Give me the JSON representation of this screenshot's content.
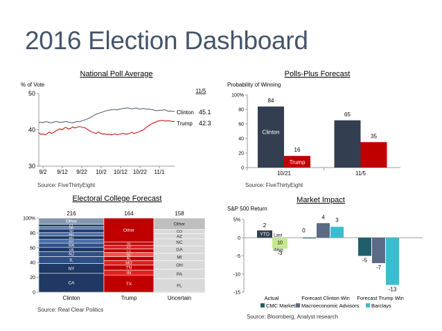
{
  "dashboard": {
    "title": "2016 Election Dashboard"
  },
  "chart_data": [
    {
      "type": "line",
      "title": "National Poll Average",
      "ylabel": "% of Vote",
      "ylim": [
        30,
        50
      ],
      "yticks": [
        "50",
        "40",
        "30"
      ],
      "xticks": [
        "9/2",
        "9/12",
        "9/22",
        "10/2",
        "10/12",
        "10/22",
        "11/1"
      ],
      "date_label": "11/5",
      "source": "Source: FiveThirtyEight",
      "series": [
        {
          "name": "Clinton",
          "latest": "45.1",
          "color": "#44546a",
          "values": [
            42.0,
            42.1,
            42.0,
            42.2,
            42.2,
            42.0,
            41.9,
            42.1,
            42.3,
            42.2,
            42.0,
            42.1,
            42.2,
            42.3,
            42.1,
            42.0,
            41.9,
            42.1,
            42.3,
            42.2,
            42.4,
            42.6,
            42.8,
            43.0,
            43.3,
            43.6,
            44.0,
            44.3,
            44.5,
            44.7,
            44.9,
            45.1,
            45.3,
            45.4,
            45.5,
            45.6,
            45.6,
            45.5,
            45.7,
            45.8,
            45.9,
            46.0,
            46.0,
            45.9,
            45.8,
            45.9,
            46.0,
            45.8,
            45.7,
            45.9,
            45.8,
            45.7,
            45.7,
            45.6,
            45.5,
            45.3,
            45.3,
            45.4,
            45.4,
            45.5,
            45.4,
            45.1,
            45.2,
            45.1,
            45.1
          ]
        },
        {
          "name": "Trump",
          "latest": "42.3",
          "color": "#c00000",
          "values": [
            39.2,
            38.7,
            38.9,
            38.6,
            39.0,
            39.4,
            39.0,
            39.3,
            39.7,
            40.0,
            40.3,
            40.0,
            40.5,
            40.6,
            40.2,
            40.4,
            40.8,
            40.5,
            40.7,
            40.9,
            40.8,
            40.6,
            40.5,
            40.1,
            39.7,
            39.4,
            39.2,
            39.0,
            39.4,
            39.1,
            38.8,
            38.9,
            38.7,
            38.8,
            38.6,
            38.7,
            38.9,
            38.6,
            38.8,
            38.9,
            39.0,
            38.8,
            38.9,
            39.1,
            39.3,
            39.0,
            39.2,
            39.4,
            39.7,
            39.9,
            40.3,
            40.8,
            41.2,
            41.6,
            41.9,
            42.1,
            42.4,
            42.5,
            42.6,
            42.5,
            42.4,
            42.5,
            42.4,
            42.3,
            42.3
          ]
        }
      ]
    },
    {
      "type": "bar",
      "title": "Polls-Plus Forecast",
      "ylabel": "Probability of Winning",
      "ylim": [
        0,
        100
      ],
      "yticks": [
        "100%",
        "80",
        "60",
        "40",
        "20",
        "0"
      ],
      "categories": [
        "10/21",
        "11/5"
      ],
      "source": "Source: FiveThirtyEight",
      "series": [
        {
          "name": "Clinton",
          "values": [
            84,
            65
          ],
          "color": "#333f50"
        },
        {
          "name": "Trump",
          "values": [
            16,
            35
          ],
          "color": "#c00000"
        }
      ]
    },
    {
      "type": "bar",
      "stacked": true,
      "title": "Electoral College Forecast",
      "ylim": [
        0,
        100
      ],
      "yticks": [
        "100%",
        "80",
        "60",
        "40",
        "20",
        "0"
      ],
      "categories": [
        "Clinton",
        "Trump",
        "Uncertain"
      ],
      "totals": [
        "216",
        "164",
        "158"
      ],
      "source": "Source: Real Clear Politics",
      "stacks": [
        {
          "segments": [
            {
              "label": "CA",
              "value": 55
            },
            {
              "label": "NY",
              "value": 29
            },
            {
              "label": "IL",
              "value": 20
            },
            {
              "label": "NJ",
              "value": 14
            },
            {
              "label": "VA",
              "value": 13
            },
            {
              "label": "WA",
              "value": 12
            },
            {
              "label": "MA",
              "value": 11
            },
            {
              "label": "MD",
              "value": 10
            },
            {
              "label": "MN",
              "value": 10
            },
            {
              "label": "WI",
              "value": 10
            },
            {
              "label": "OR",
              "value": 7
            },
            {
              "label": "CT",
              "value": 7
            },
            {
              "label": "Other",
              "value": 18
            }
          ]
        },
        {
          "segments": [
            {
              "label": "TX",
              "value": 38
            },
            {
              "label": "IN",
              "value": 11
            },
            {
              "label": "TN",
              "value": 11
            },
            {
              "label": "MO",
              "value": 10
            },
            {
              "label": "AL",
              "value": 9
            },
            {
              "label": "SC",
              "value": 9
            },
            {
              "label": "LA",
              "value": 8
            },
            {
              "label": "KY",
              "value": 8
            },
            {
              "label": "OK",
              "value": 7
            },
            {
              "label": "Other",
              "value": 53
            }
          ]
        },
        {
          "segments": [
            {
              "label": "FL",
              "value": 29
            },
            {
              "label": "PA",
              "value": 20
            },
            {
              "label": "OH",
              "value": 18
            },
            {
              "label": "MI",
              "value": 16
            },
            {
              "label": "GA",
              "value": 16
            },
            {
              "label": "NC",
              "value": 15
            },
            {
              "label": "AZ",
              "value": 11
            },
            {
              "label": "CO",
              "value": 9
            },
            {
              "label": "Other",
              "value": 24
            }
          ]
        }
      ]
    },
    {
      "type": "bar",
      "title": "Market Impact",
      "ylabel": "S&P 500 Return",
      "ylim": [
        -15,
        5
      ],
      "yticks": [
        "5%",
        "0",
        "-5",
        "-10",
        "-15"
      ],
      "categories": [
        "Actual",
        "Forecast Clinton Win",
        "Forecast Trump Win"
      ],
      "source": "Source: Bloomberg, Analyst research",
      "ytd_label": "YTD",
      "last10_label": "Last 10 days",
      "actual_values": [
        {
          "label": "2",
          "value": 2,
          "kind": "ytd",
          "color": "#333f50"
        },
        {
          "label": "-3",
          "value": -3,
          "kind": "last10",
          "color": "#c5e88f"
        }
      ],
      "series": [
        {
          "name": "CMC Markets",
          "color": "#1f5f6b",
          "values": [
            null,
            0,
            -5
          ]
        },
        {
          "name": "Macroeconomic Advisors",
          "color": "#5b6a85",
          "values": [
            null,
            4,
            -7
          ]
        },
        {
          "name": "Barclays",
          "color": "#3bbdd1",
          "values": [
            null,
            3,
            -13
          ]
        }
      ],
      "value_labels": [
        {
          "text": "0",
          "value": 0
        },
        {
          "text": "4",
          "value": 4
        },
        {
          "text": "3",
          "value": 3
        },
        {
          "text": "-5",
          "value": -5
        },
        {
          "text": "-7",
          "value": -7
        },
        {
          "text": "-13",
          "value": -13
        }
      ]
    }
  ]
}
